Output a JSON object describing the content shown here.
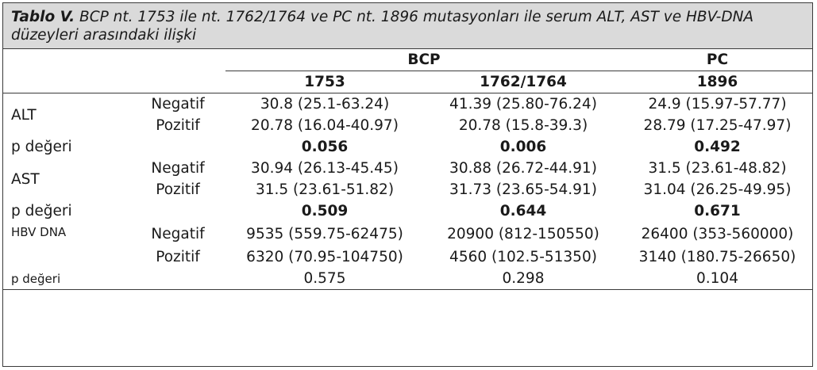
{
  "caption": {
    "label": "Tablo V.",
    "text": "BCP nt. 1753 ile nt. 1762/1764 ve PC nt. 1896 mutasyonları ile serum ALT, AST ve HBV-DNA düzeyleri arasındaki ilişki"
  },
  "header": {
    "group_bcp": "BCP",
    "group_pc": "PC",
    "col_1753": "1753",
    "col_1762": "1762/1764",
    "col_1896": "1896"
  },
  "alt": {
    "label": "ALT",
    "negatif": {
      "label": "Negatif",
      "v1753": "30.8 (25.1-63.24)",
      "v1762": "41.39 (25.80-76.24)",
      "v1896": "24.9 (15.97-57.77)"
    },
    "pozitif": {
      "label": "Pozitif",
      "v1753": "20.78 (16.04-40.97)",
      "v1762": "20.78 (15.8-39.3)",
      "v1896": "28.79 (17.25-47.97)"
    },
    "p": {
      "label": "p değeri",
      "v1753": "0.056",
      "v1762": "0.006",
      "v1896": "0.492"
    }
  },
  "ast": {
    "label": "AST",
    "negatif": {
      "label": "Negatif",
      "v1753": "30.94 (26.13-45.45)",
      "v1762": "30.88 (26.72-44.91)",
      "v1896": "31.5 (23.61-48.82)"
    },
    "pozitif": {
      "label": "Pozitif",
      "v1753": "31.5 (23.61-51.82)",
      "v1762": "31.73 (23.65-54.91)",
      "v1896": "31.04 (26.25-49.95)"
    },
    "p": {
      "label": "p değeri",
      "v1753": "0.509",
      "v1762": "0.644",
      "v1896": "0.671"
    }
  },
  "hbv": {
    "label": "HBV DNA",
    "negatif": {
      "label": "Negatif",
      "v1753": "9535 (559.75-62475)",
      "v1762": "20900 (812-150550)",
      "v1896": "26400 (353-560000)"
    },
    "pozitif": {
      "label": "Pozitif",
      "v1753": "6320 (70.95-104750)",
      "v1762": "4560 (102.5-51350)",
      "v1896": "3140 (180.75-26650)"
    },
    "p": {
      "label": "p değeri",
      "v1753": "0.575",
      "v1762": "0.298",
      "v1896": "0.104"
    }
  }
}
